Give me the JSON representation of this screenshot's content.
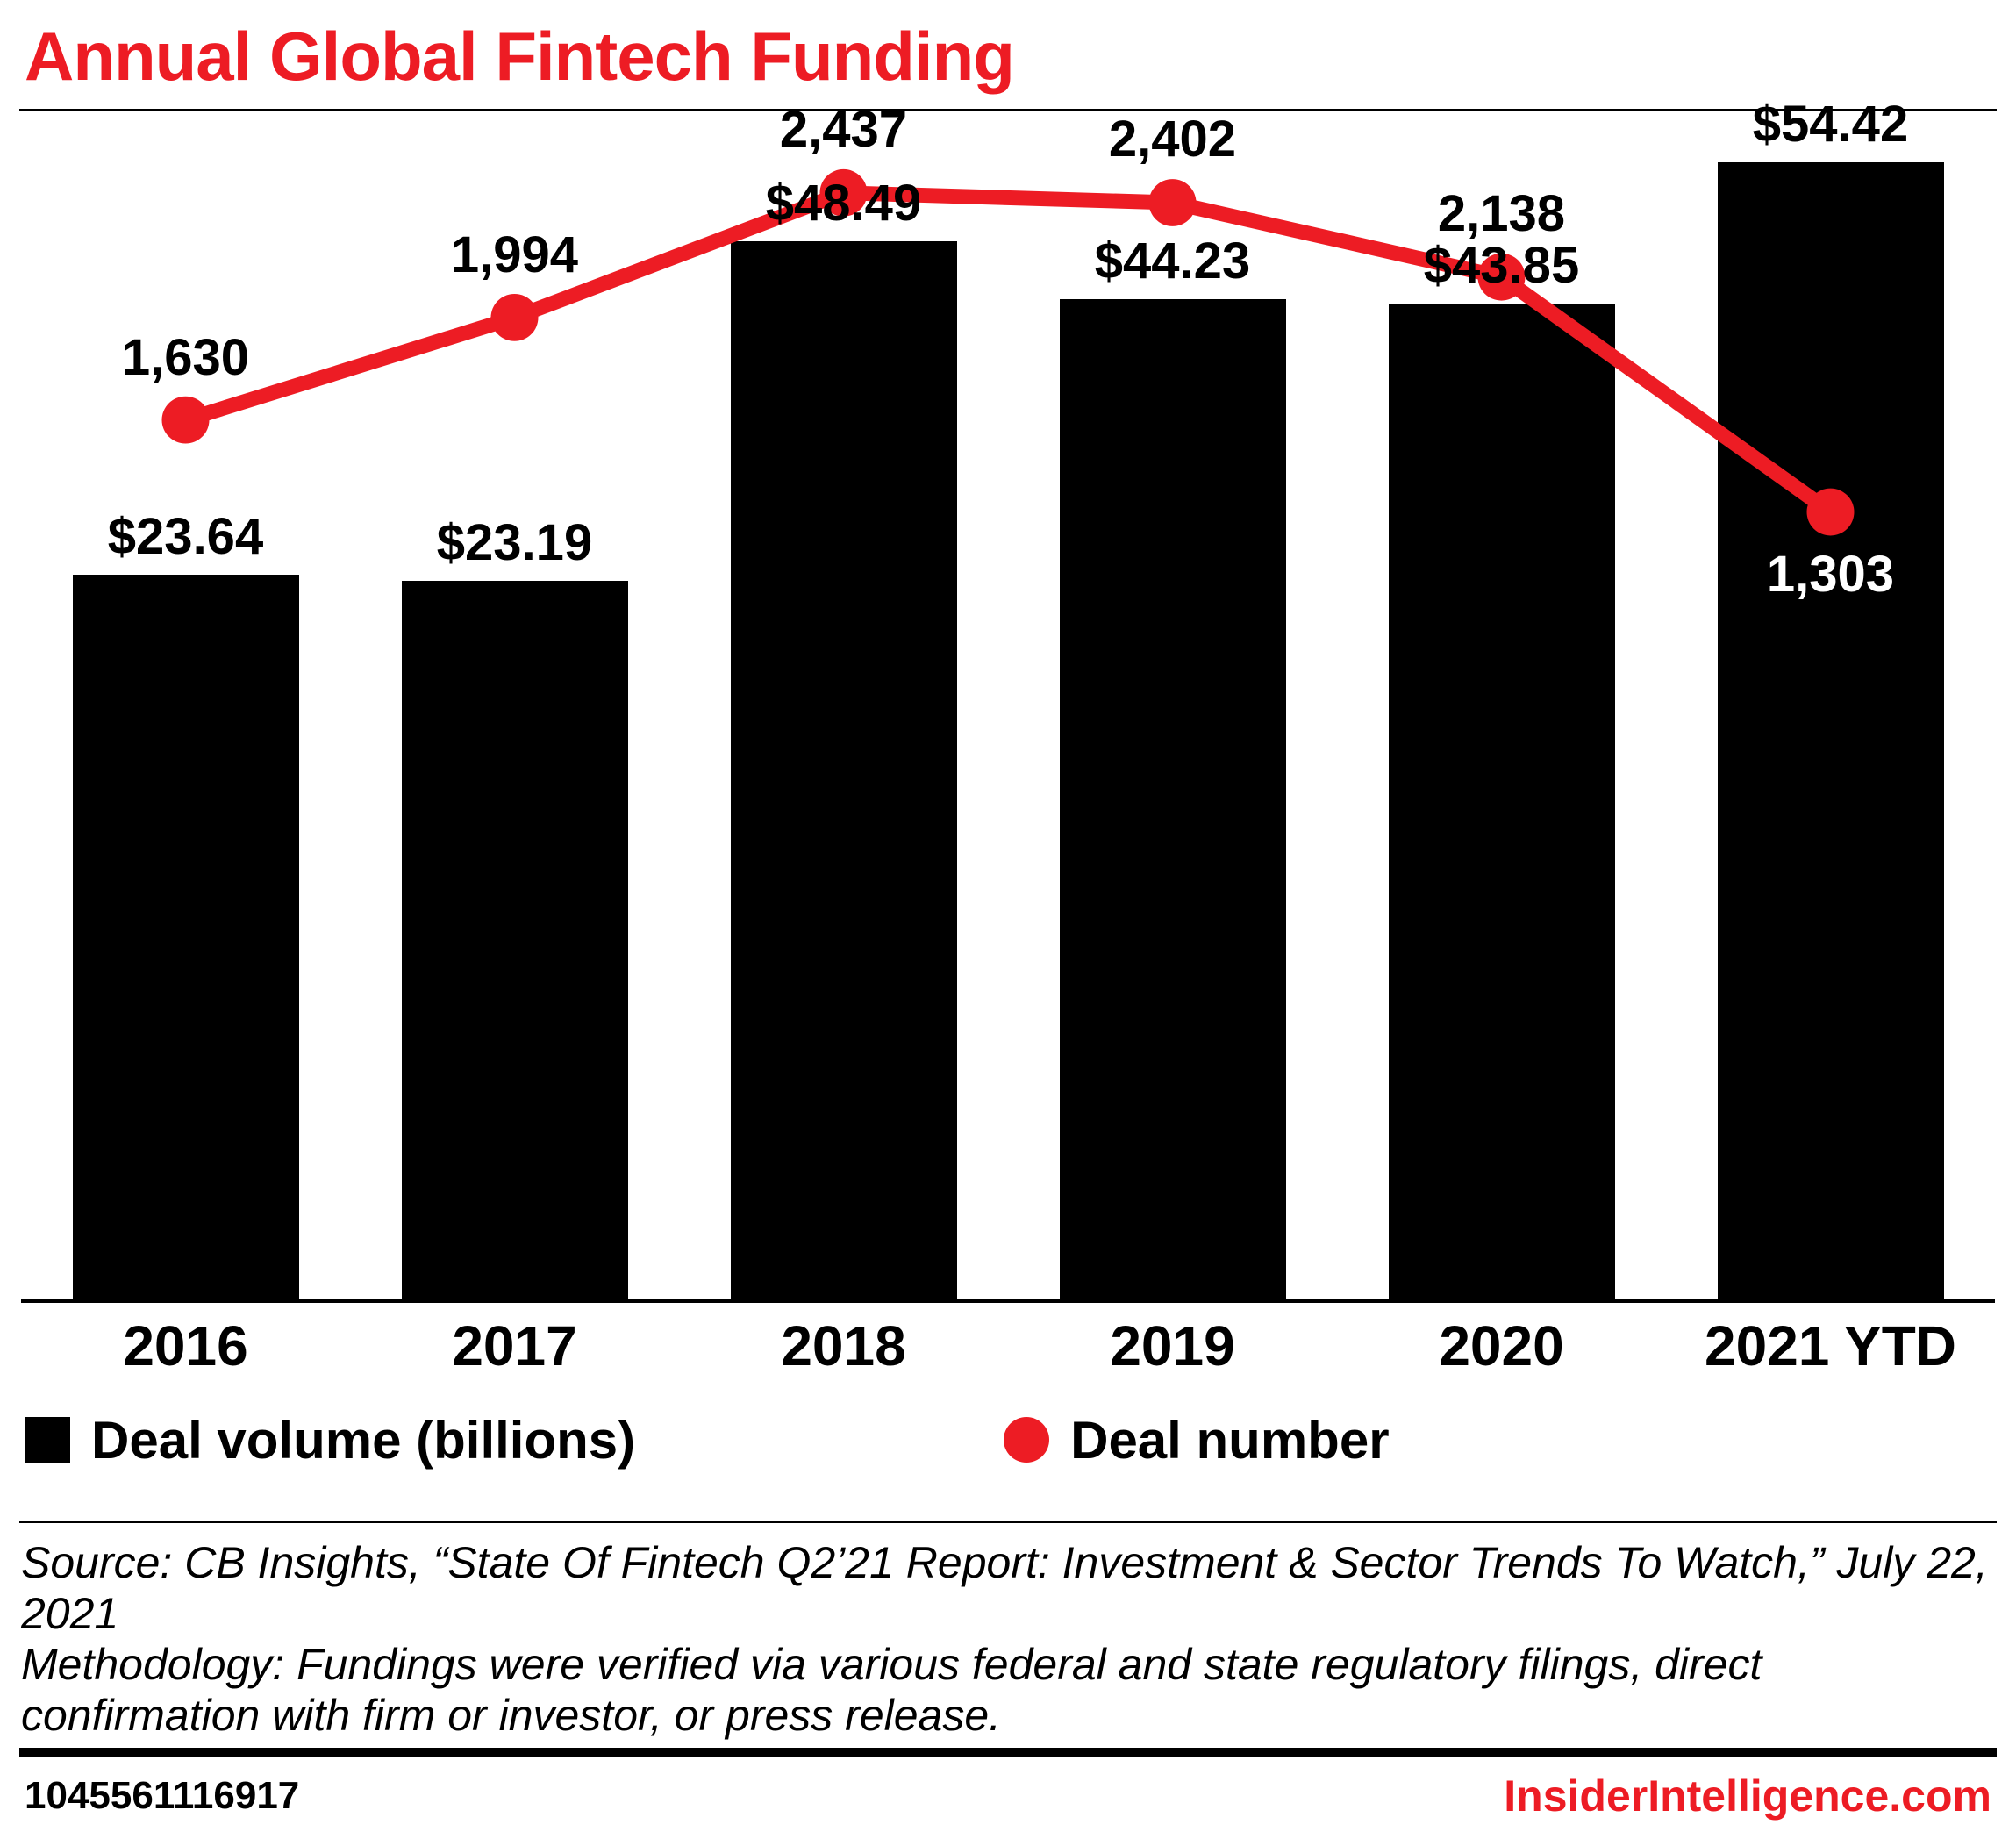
{
  "title": "Annual Global Fintech Funding",
  "colors": {
    "accent_red": "#ed1c24",
    "bar_black": "#000000"
  },
  "chart_data": {
    "type": "bar",
    "subtype": "bar-plus-line-combo",
    "categories": [
      "2016",
      "2017",
      "2018",
      "2019",
      "2020",
      "2021 YTD"
    ],
    "series": [
      {
        "name": "Deal volume (billions)",
        "type": "bar",
        "color": "#000000",
        "values": [
          23.64,
          23.19,
          48.49,
          44.23,
          43.85,
          54.42
        ],
        "labels": [
          "$23.64",
          "$23.19",
          "$48.49",
          "$44.23",
          "$43.85",
          "$54.42"
        ]
      },
      {
        "name": "Deal number",
        "type": "line",
        "color": "#ed1c24",
        "values": [
          1630,
          1994,
          2437,
          2402,
          2138,
          1303
        ],
        "labels": [
          "1,630",
          "1,994",
          "2,437",
          "2,402",
          "2,138",
          "1,303"
        ]
      }
    ],
    "xlabel": "",
    "ylabel": "",
    "grid": false,
    "legend_position": "bottom",
    "value_labels_shown": true
  },
  "source": {
    "source_line": "Source: CB Insights, “State Of Fintech Q2’21 Report: Investment & Sector Trends To Watch,” July 22, 2021",
    "methodology_line": "Methodology: Fundings were verified via various federal and state regulatory filings, direct confirmation with firm or investor, or press release."
  },
  "footer": {
    "id": "1045561116917",
    "site": "InsiderIntelligence.com"
  }
}
